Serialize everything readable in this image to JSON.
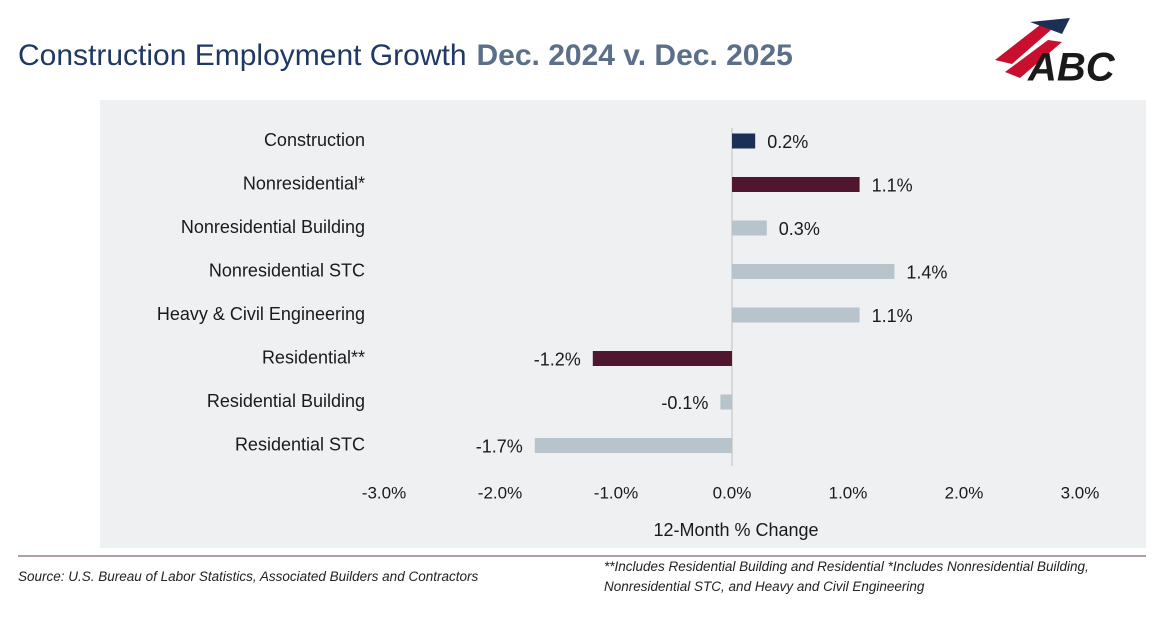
{
  "chart_data": {
    "type": "bar",
    "orientation": "horizontal",
    "title": "Construction Employment Growth",
    "subtitle": "Dec. 2024 v. Dec. 2025",
    "categories": [
      "Construction",
      "Nonresidential*",
      "Nonresidential Building",
      "Nonresidential STC",
      "Heavy & Civil Engineering",
      "Residential**",
      "Residential Building",
      "Residential STC"
    ],
    "values": [
      0.2,
      1.1,
      0.3,
      1.4,
      1.1,
      -1.2,
      -0.1,
      -1.7
    ],
    "value_labels": [
      "0.2%",
      "1.1%",
      "0.3%",
      "1.4%",
      "1.1%",
      "-1.2%",
      "-0.1%",
      "-1.7%"
    ],
    "colors": [
      "#1b2f57",
      "#4f1630",
      "#b7c4cc",
      "#b7c4cc",
      "#b7c4cc",
      "#4f1630",
      "#b7c4cc",
      "#b7c4cc"
    ],
    "xlim": [
      -3,
      3
    ],
    "xticks": [
      {
        "value": -3,
        "label": "-3.0%"
      },
      {
        "value": -2,
        "label": "-2.0%"
      },
      {
        "value": -1,
        "label": "-1.0%"
      },
      {
        "value": 0,
        "label": "0.0%"
      },
      {
        "value": 1,
        "label": "1.0%"
      },
      {
        "value": 2,
        "label": "2.0%"
      },
      {
        "value": 3,
        "label": "3.0%"
      }
    ],
    "xlabel": "12-Month % Change",
    "grid": false
  },
  "source": "Source: U.S. Bureau of Labor Statistics, Associated Builders and Contractors",
  "note": "**Includes Residential Building and Residential *Includes Nonresidential Building, Nonresidential STC, and Heavy and Civil Engineering",
  "logo": "ABC"
}
